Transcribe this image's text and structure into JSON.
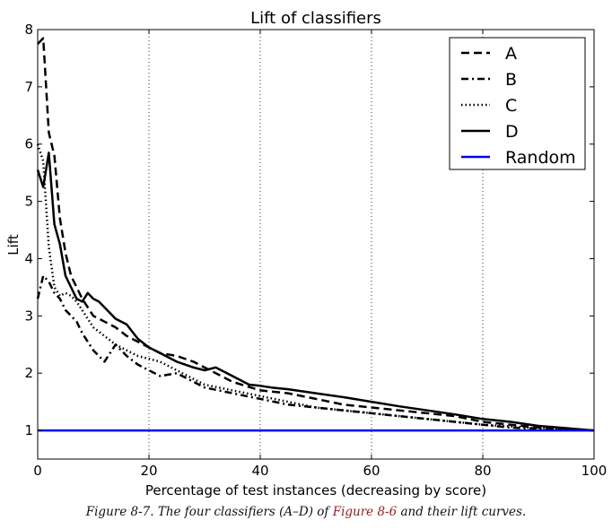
{
  "chart_data": {
    "type": "line",
    "title": "Lift of classifiers",
    "xlabel": "Percentage of test instances (decreasing by score)",
    "ylabel": "Lift",
    "xlim": [
      0,
      100
    ],
    "ylim": [
      0.5,
      8
    ],
    "xticks": [
      0,
      20,
      40,
      60,
      80,
      100
    ],
    "yticks": [
      1,
      2,
      3,
      4,
      5,
      6,
      7,
      8
    ],
    "grid": "vertical dotted",
    "legend_position": "top-right",
    "series": [
      {
        "name": "A",
        "style": "dashed",
        "color": "#000000",
        "x": [
          0,
          1,
          2,
          3,
          4,
          5,
          6,
          8,
          10,
          12,
          14,
          16,
          18,
          20,
          22,
          25,
          28,
          30,
          32,
          35,
          40,
          45,
          50,
          55,
          60,
          65,
          70,
          75,
          80,
          85,
          90,
          95,
          100
        ],
        "y": [
          7.75,
          7.85,
          6.2,
          5.8,
          4.7,
          4.1,
          3.7,
          3.3,
          3.0,
          2.9,
          2.8,
          2.65,
          2.55,
          2.45,
          2.35,
          2.3,
          2.2,
          2.1,
          2.0,
          1.85,
          1.7,
          1.65,
          1.55,
          1.45,
          1.4,
          1.35,
          1.3,
          1.25,
          1.15,
          1.1,
          1.05,
          1.02,
          1.0
        ]
      },
      {
        "name": "B",
        "style": "dashdot",
        "color": "#000000",
        "x": [
          0,
          1,
          2,
          3,
          4,
          5,
          6,
          7,
          8,
          10,
          12,
          14,
          16,
          18,
          20,
          22,
          25,
          28,
          30,
          35,
          40,
          45,
          50,
          55,
          60,
          65,
          70,
          75,
          80,
          85,
          90,
          95,
          100
        ],
        "y": [
          3.3,
          3.7,
          3.6,
          3.4,
          3.3,
          3.1,
          3.0,
          2.9,
          2.7,
          2.4,
          2.2,
          2.5,
          2.3,
          2.15,
          2.05,
          1.95,
          2.0,
          1.85,
          1.75,
          1.65,
          1.55,
          1.45,
          1.4,
          1.35,
          1.3,
          1.25,
          1.2,
          1.15,
          1.1,
          1.05,
          1.03,
          1.01,
          1.0
        ]
      },
      {
        "name": "C",
        "style": "dotted",
        "color": "#000000",
        "x": [
          0,
          1,
          2,
          3,
          4,
          5,
          6,
          7,
          8,
          10,
          12,
          14,
          16,
          18,
          20,
          22,
          25,
          28,
          30,
          35,
          40,
          45,
          50,
          55,
          60,
          65,
          70,
          75,
          80,
          85,
          90,
          95,
          100
        ],
        "y": [
          6.0,
          5.7,
          4.2,
          3.5,
          3.35,
          3.4,
          3.35,
          3.25,
          3.1,
          2.8,
          2.65,
          2.5,
          2.4,
          2.3,
          2.25,
          2.2,
          2.05,
          1.9,
          1.8,
          1.7,
          1.6,
          1.5,
          1.4,
          1.35,
          1.3,
          1.25,
          1.2,
          1.15,
          1.1,
          1.07,
          1.04,
          1.02,
          1.0
        ]
      },
      {
        "name": "D",
        "style": "solid",
        "color": "#000000",
        "x": [
          0,
          1,
          2,
          3,
          4,
          5,
          6,
          7,
          8,
          9,
          10,
          11,
          12,
          14,
          16,
          18,
          20,
          22,
          25,
          28,
          30,
          32,
          35,
          38,
          40,
          42,
          45,
          50,
          55,
          60,
          65,
          70,
          75,
          80,
          85,
          90,
          95,
          100
        ],
        "y": [
          5.55,
          5.25,
          5.85,
          4.6,
          4.25,
          3.7,
          3.5,
          3.3,
          3.25,
          3.4,
          3.3,
          3.25,
          3.15,
          2.95,
          2.85,
          2.6,
          2.45,
          2.35,
          2.2,
          2.1,
          2.05,
          2.1,
          1.95,
          1.8,
          1.78,
          1.75,
          1.72,
          1.65,
          1.58,
          1.5,
          1.42,
          1.35,
          1.28,
          1.2,
          1.15,
          1.08,
          1.04,
          1.0
        ]
      },
      {
        "name": "Random",
        "style": "solid",
        "color": "#0000ff",
        "x": [
          0,
          100
        ],
        "y": [
          1.0,
          1.0
        ]
      }
    ]
  },
  "caption": {
    "prefix": "Figure 8-7. The four classifiers (A–D) of ",
    "link": "Figure 8-6",
    "suffix": " and their lift curves."
  }
}
